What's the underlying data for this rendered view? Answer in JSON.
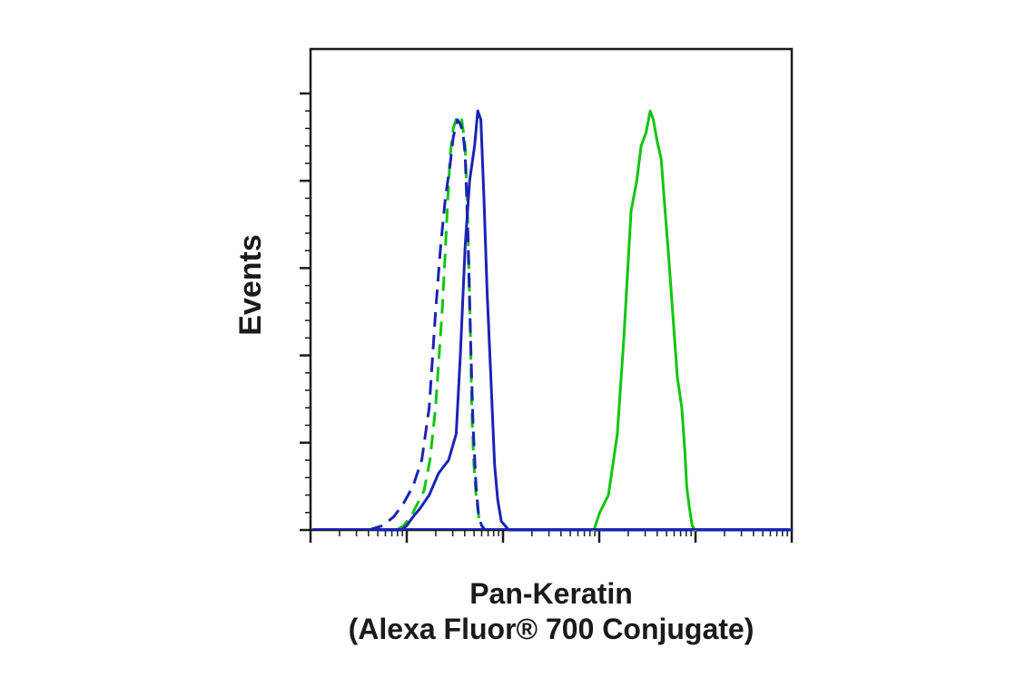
{
  "chart_data": {
    "type": "line",
    "title": "",
    "xlabel_line1": "Pan-Keratin",
    "xlabel_line2": "(Alexa Fluor® 700 Conjugate)",
    "ylabel": "Events",
    "x_scale": "log",
    "xlim": [
      1,
      100000
    ],
    "ylim": [
      0,
      100
    ],
    "y_ticks": [
      0,
      20,
      40,
      60,
      80,
      100
    ],
    "grid": false,
    "legend": "none",
    "series": [
      {
        "color": "#11C511",
        "dashed": true,
        "x": [
          7.9,
          9.2,
          11,
          12.9,
          15.1,
          17.4,
          19.9,
          23.3,
          25.2,
          26.7,
          28.3,
          30.4,
          33.7,
          37.3,
          40.4,
          43.1,
          45.8,
          47.3,
          49.8,
          52.5,
          56,
          60,
          65
        ],
        "y": [
          0,
          1,
          3,
          6,
          9,
          16,
          28,
          50,
          64,
          76,
          86,
          92,
          95,
          94,
          88,
          70,
          45,
          28,
          15,
          8,
          3,
          1,
          0
        ]
      },
      {
        "color": "#1A23B5",
        "dashed": true,
        "x": [
          4,
          5.6,
          7.3,
          9.2,
          11.6,
          14.3,
          17.1,
          19.9,
          22.5,
          25.2,
          28.3,
          30.4,
          33.7,
          36,
          38.4,
          40.4,
          43.1,
          45.8,
          48.8,
          52.5,
          56,
          60,
          65
        ],
        "y": [
          0,
          1,
          3,
          6,
          10,
          16,
          28,
          50,
          65,
          76,
          84,
          90,
          94,
          93,
          91,
          86,
          68,
          45,
          24,
          10,
          3,
          1,
          0
        ]
      },
      {
        "color": "#1A23B5",
        "dashed": false,
        "x": [
          5,
          8.8,
          10,
          11.6,
          13.8,
          17.1,
          21.4,
          27.2,
          32.6,
          36,
          40.4,
          45,
          50.7,
          54.7,
          58.9,
          63.4,
          68.3,
          74.7,
          81.7,
          88,
          96,
          115,
          150,
          10000,
          100000
        ],
        "y": [
          0,
          0,
          1,
          3,
          5,
          8,
          13,
          16,
          22,
          40,
          65,
          80,
          88,
          96,
          94,
          76,
          55,
          35,
          15,
          7,
          2,
          0,
          0,
          0,
          0
        ]
      },
      {
        "color": "#11C511",
        "dashed": false,
        "x": [
          880,
          1012,
          1245,
          1540,
          1800,
          2140,
          2450,
          2720,
          3060,
          3380,
          3650,
          4000,
          4400,
          4800,
          5250,
          5780,
          6480,
          7200,
          7750,
          8100,
          8650,
          9250,
          9900
        ],
        "y": [
          0,
          4,
          8,
          22,
          44,
          73,
          80,
          88,
          91,
          96,
          94,
          89,
          85,
          74,
          63,
          50,
          35,
          28,
          18,
          10,
          5,
          1,
          0
        ]
      }
    ]
  }
}
